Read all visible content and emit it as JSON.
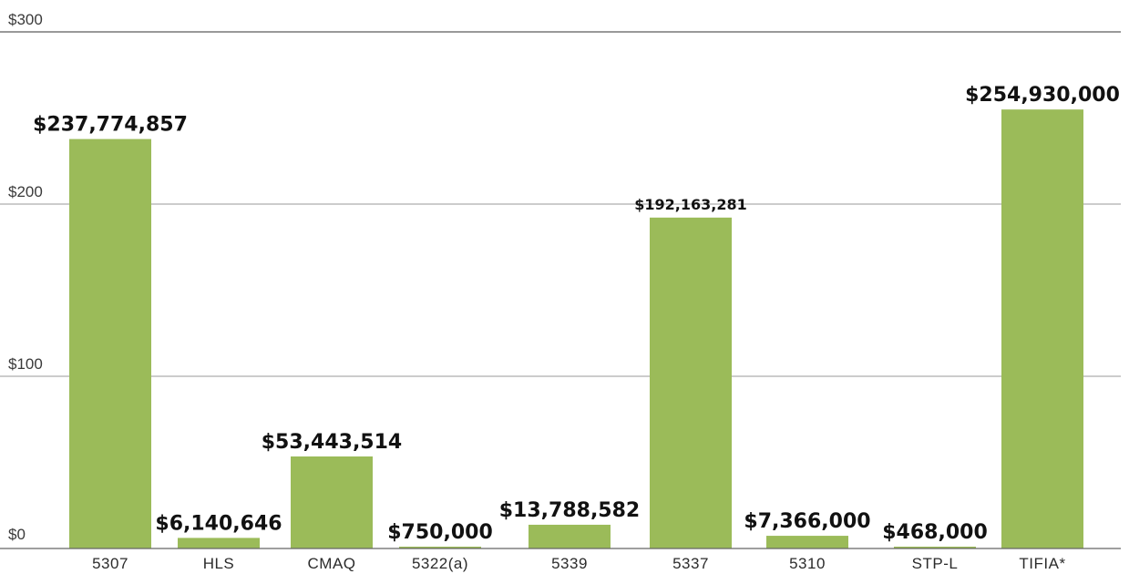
{
  "chart_data": {
    "type": "bar",
    "title": "",
    "xlabel": "",
    "ylabel": "",
    "ylim": [
      0,
      300
    ],
    "yticks": [
      {
        "value": 0,
        "label": "$0"
      },
      {
        "value": 100,
        "label": "$100"
      },
      {
        "value": 200,
        "label": "$200"
      },
      {
        "value": 300,
        "label": "$300"
      }
    ],
    "grid": true,
    "categories": [
      "5307",
      "HLS",
      "CMAQ",
      "5322(a)",
      "5339",
      "5337",
      "5310",
      "STP-L",
      "TIFIA*"
    ],
    "values": [
      237.774857,
      6.140646,
      53.443514,
      0.75,
      13.788582,
      192.163281,
      7.366,
      0.468,
      254.93
    ],
    "data_labels": [
      "$237,774,857",
      "$6,140,646",
      "$53,443,514",
      "$750,000",
      "$13,788,582",
      "$192,163,281",
      "$7,366,000",
      "$468,000",
      "$254,930,000"
    ],
    "bar_color": "#9bbb59"
  }
}
